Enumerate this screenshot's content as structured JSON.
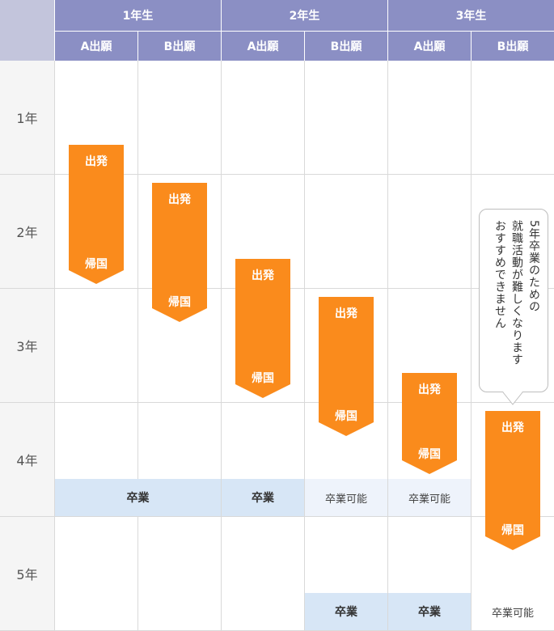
{
  "header": {
    "groups": [
      {
        "label": "1年生",
        "sub": [
          "A出願",
          "B出願"
        ]
      },
      {
        "label": "2年生",
        "sub": [
          "A出願",
          "B出願"
        ]
      },
      {
        "label": "3年生",
        "sub": [
          "A出願",
          "B出願"
        ]
      }
    ]
  },
  "years": [
    "1年",
    "2年",
    "3年",
    "4年",
    "5年"
  ],
  "arrow_labels": {
    "depart": "出発",
    "return": "帰国"
  },
  "plans": [
    {
      "grade": "1年生",
      "plan": "A出願",
      "depart": "1年",
      "return": "2年",
      "graduation": "卒業",
      "graduation_year": "4年"
    },
    {
      "grade": "1年生",
      "plan": "B出願",
      "depart": "2年",
      "return": "3年",
      "graduation": "卒業",
      "graduation_year": "4年"
    },
    {
      "grade": "2年生",
      "plan": "A出願",
      "depart": "3年",
      "return": "3年",
      "graduation": "卒業",
      "graduation_year": "4年"
    },
    {
      "grade": "2年生",
      "plan": "B出願",
      "depart": "3年",
      "return": "4年",
      "graduation": "卒業可能",
      "graduation_year": "4年",
      "graduation2": "卒業",
      "graduation2_year": "5年"
    },
    {
      "grade": "3年生",
      "plan": "A出願",
      "depart": "4年",
      "return": "4年",
      "graduation": "卒業可能",
      "graduation_year": "4年",
      "graduation2": "卒業",
      "graduation2_year": "5年"
    },
    {
      "grade": "3年生",
      "plan": "B出願",
      "depart": "4年",
      "return": "5年",
      "graduation": "卒業可能",
      "graduation_year": "5年"
    }
  ],
  "graduation_labels": {
    "graduate": "卒業",
    "can_graduate": "卒業可能"
  },
  "callout": {
    "lines": [
      "5年卒業のための",
      "就職活動が難しくなります",
      "おすすめできません"
    ]
  },
  "colors": {
    "header_bg": "#8b8fc4",
    "corner_bg": "#c3c5dc",
    "arrow": "#fa8b1c",
    "graduate_bg": "#d7e6f6",
    "can_graduate_bg": "#eef3fb",
    "grid": "#d9d9d9"
  }
}
